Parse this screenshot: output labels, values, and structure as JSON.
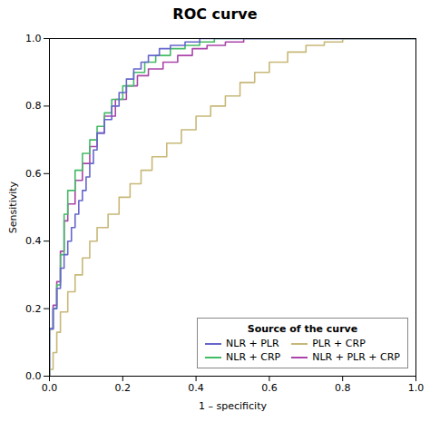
{
  "chart_data": {
    "type": "line",
    "title": "ROC curve",
    "xlabel": "1 – specificity",
    "ylabel": "Sensitivity",
    "xlim": [
      0.0,
      1.0
    ],
    "ylim": [
      0.0,
      1.0
    ],
    "xticks": [
      {
        "value": 0.0,
        "label": "0.0"
      },
      0.2,
      0.4,
      0.6,
      0.8,
      {
        "value": 1.0,
        "label": "1.0"
      }
    ],
    "yticks": [
      {
        "value": 0.0,
        "label": "0.0"
      },
      0.2,
      0.4,
      0.6,
      0.8,
      {
        "value": 1.0,
        "label": "1.0"
      }
    ],
    "grid": false,
    "legend": "lower right",
    "legend_title": "Source of the curve",
    "series": [
      {
        "name": "NLR + PLR",
        "color": "#6666cc",
        "x": [
          0.0,
          0.0,
          0.01,
          0.01,
          0.02,
          0.02,
          0.03,
          0.03,
          0.04,
          0.04,
          0.05,
          0.05,
          0.06,
          0.06,
          0.07,
          0.07,
          0.08,
          0.08,
          0.09,
          0.09,
          0.1,
          0.1,
          0.11,
          0.11,
          0.12,
          0.12,
          0.13,
          0.13,
          0.15,
          0.15,
          0.17,
          0.17,
          0.19,
          0.19,
          0.21,
          0.21,
          0.23,
          0.23,
          0.25,
          0.25,
          0.27,
          0.27,
          0.3,
          0.3,
          0.33,
          0.33,
          0.37,
          0.37,
          0.41,
          0.41,
          0.46,
          0.46,
          0.5,
          0.5,
          0.55,
          0.55,
          0.6,
          0.6,
          1.0
        ],
        "values": [
          0.0,
          0.14,
          0.14,
          0.2,
          0.2,
          0.26,
          0.26,
          0.32,
          0.32,
          0.36,
          0.36,
          0.4,
          0.4,
          0.44,
          0.44,
          0.48,
          0.48,
          0.52,
          0.52,
          0.55,
          0.55,
          0.59,
          0.59,
          0.63,
          0.63,
          0.67,
          0.67,
          0.72,
          0.72,
          0.76,
          0.76,
          0.8,
          0.8,
          0.84,
          0.84,
          0.88,
          0.88,
          0.91,
          0.91,
          0.93,
          0.93,
          0.95,
          0.95,
          0.97,
          0.97,
          0.98,
          0.98,
          0.99,
          0.99,
          1.0,
          1.0,
          1.0,
          1.0,
          1.0,
          1.0,
          1.0,
          1.0,
          1.0,
          1.0
        ]
      },
      {
        "name": "NLR + CRP",
        "color": "#44bb66",
        "x": [
          0.0,
          0.0,
          0.01,
          0.01,
          0.02,
          0.02,
          0.03,
          0.03,
          0.04,
          0.04,
          0.05,
          0.05,
          0.07,
          0.07,
          0.09,
          0.09,
          0.11,
          0.11,
          0.13,
          0.13,
          0.15,
          0.15,
          0.17,
          0.17,
          0.2,
          0.2,
          0.23,
          0.23,
          0.26,
          0.26,
          0.29,
          0.29,
          0.33,
          0.33,
          0.37,
          0.37,
          0.41,
          0.41,
          0.45,
          0.45,
          0.5,
          0.5,
          0.55,
          0.55,
          0.6,
          0.6,
          0.65,
          0.65,
          1.0
        ],
        "values": [
          0.0,
          0.14,
          0.14,
          0.2,
          0.2,
          0.27,
          0.27,
          0.36,
          0.36,
          0.48,
          0.48,
          0.55,
          0.55,
          0.61,
          0.61,
          0.66,
          0.66,
          0.7,
          0.7,
          0.74,
          0.74,
          0.78,
          0.78,
          0.82,
          0.82,
          0.86,
          0.86,
          0.9,
          0.9,
          0.93,
          0.93,
          0.95,
          0.95,
          0.97,
          0.97,
          0.98,
          0.98,
          0.99,
          0.99,
          1.0,
          1.0,
          1.0,
          1.0,
          1.0,
          1.0,
          1.0,
          1.0,
          1.0,
          1.0
        ]
      },
      {
        "name": "PLR + CRP",
        "color": "#c8b878",
        "x": [
          0.0,
          0.0,
          0.01,
          0.01,
          0.02,
          0.02,
          0.03,
          0.03,
          0.05,
          0.05,
          0.07,
          0.07,
          0.09,
          0.09,
          0.11,
          0.11,
          0.13,
          0.13,
          0.16,
          0.16,
          0.19,
          0.19,
          0.22,
          0.22,
          0.25,
          0.25,
          0.28,
          0.28,
          0.32,
          0.32,
          0.36,
          0.36,
          0.4,
          0.4,
          0.44,
          0.44,
          0.48,
          0.48,
          0.52,
          0.52,
          0.56,
          0.56,
          0.6,
          0.6,
          0.65,
          0.65,
          0.7,
          0.7,
          0.75,
          0.75,
          0.8,
          0.8,
          0.85,
          0.85,
          0.9,
          0.9,
          1.0
        ],
        "values": [
          0.0,
          0.02,
          0.02,
          0.07,
          0.07,
          0.13,
          0.13,
          0.19,
          0.19,
          0.25,
          0.25,
          0.3,
          0.3,
          0.35,
          0.35,
          0.4,
          0.4,
          0.44,
          0.44,
          0.48,
          0.48,
          0.53,
          0.53,
          0.57,
          0.57,
          0.61,
          0.61,
          0.65,
          0.65,
          0.69,
          0.69,
          0.73,
          0.73,
          0.77,
          0.77,
          0.8,
          0.8,
          0.83,
          0.83,
          0.87,
          0.87,
          0.9,
          0.9,
          0.93,
          0.93,
          0.96,
          0.96,
          0.98,
          0.98,
          0.99,
          0.99,
          1.0,
          1.0,
          1.0,
          1.0,
          1.0,
          1.0
        ]
      },
      {
        "name": "NLR + PLR + CRP",
        "color": "#aa44aa",
        "x": [
          0.0,
          0.0,
          0.01,
          0.01,
          0.02,
          0.02,
          0.03,
          0.03,
          0.04,
          0.04,
          0.05,
          0.05,
          0.07,
          0.07,
          0.09,
          0.09,
          0.11,
          0.11,
          0.13,
          0.13,
          0.15,
          0.15,
          0.18,
          0.18,
          0.21,
          0.21,
          0.24,
          0.24,
          0.27,
          0.27,
          0.31,
          0.31,
          0.35,
          0.35,
          0.39,
          0.39,
          0.43,
          0.43,
          0.48,
          0.48,
          0.53,
          0.53,
          0.58,
          0.58,
          0.63,
          0.63,
          1.0
        ],
        "values": [
          0.0,
          0.14,
          0.14,
          0.21,
          0.21,
          0.28,
          0.28,
          0.37,
          0.37,
          0.46,
          0.46,
          0.51,
          0.51,
          0.58,
          0.58,
          0.63,
          0.63,
          0.68,
          0.68,
          0.72,
          0.72,
          0.77,
          0.77,
          0.82,
          0.82,
          0.86,
          0.86,
          0.89,
          0.89,
          0.91,
          0.91,
          0.93,
          0.93,
          0.95,
          0.95,
          0.97,
          0.97,
          0.98,
          0.98,
          0.99,
          0.99,
          1.0,
          1.0,
          1.0,
          1.0,
          1.0,
          1.0
        ]
      }
    ]
  }
}
